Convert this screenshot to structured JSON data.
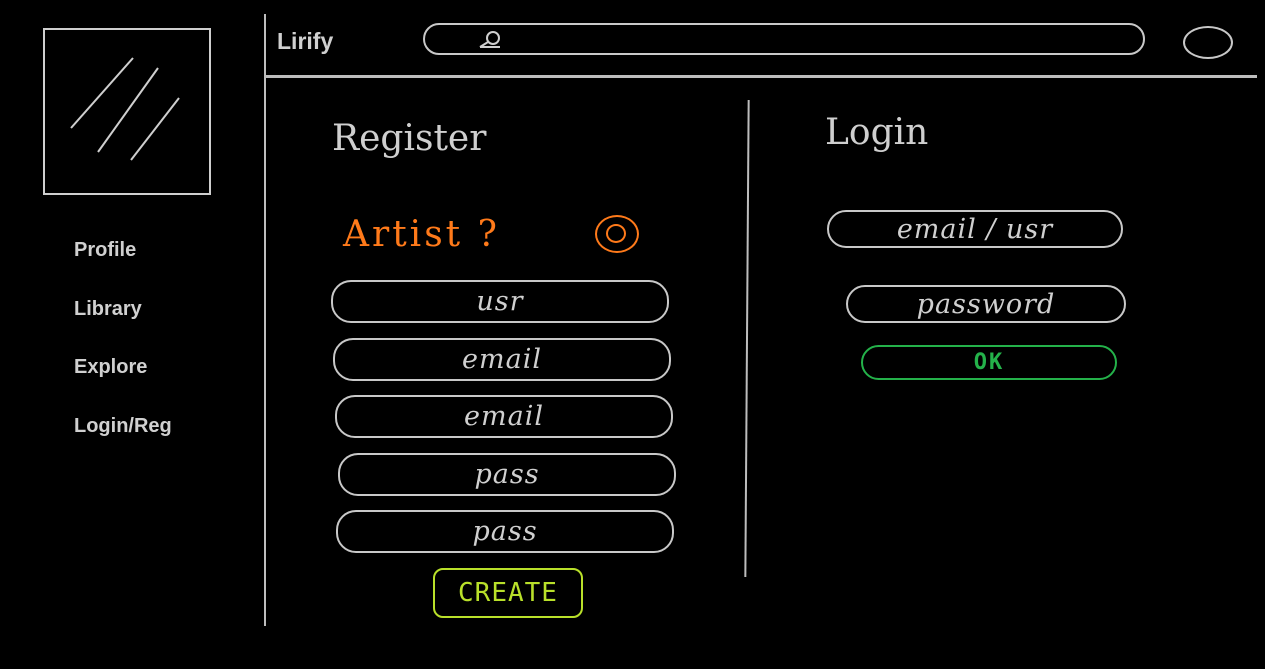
{
  "app": {
    "title": "Lirify"
  },
  "header": {
    "search_placeholder": ""
  },
  "sidebar": {
    "items": [
      {
        "label": "Profile"
      },
      {
        "label": "Library"
      },
      {
        "label": "Explore"
      },
      {
        "label": "Login/Reg"
      }
    ]
  },
  "register": {
    "title": "Register",
    "artist_label": "Artist ?",
    "fields": [
      {
        "placeholder": "usr"
      },
      {
        "placeholder": "email"
      },
      {
        "placeholder": "email"
      },
      {
        "placeholder": "pass"
      },
      {
        "placeholder": "pass"
      }
    ],
    "create_label": "CREATE"
  },
  "login": {
    "title": "Login",
    "fields": [
      {
        "placeholder": "email / usr"
      },
      {
        "placeholder": "password"
      }
    ],
    "ok_label": "OK"
  },
  "colors": {
    "background": "#000000",
    "line": "#c8c8c8",
    "artist_accent": "#ff7a1a",
    "create_accent": "#b9e02a",
    "ok_accent": "#24b24a"
  },
  "icons": {
    "logo": "logo-placeholder-icon",
    "search": "search-icon",
    "avatar": "avatar-icon",
    "artist_toggle": "toggle-circle-icon"
  }
}
